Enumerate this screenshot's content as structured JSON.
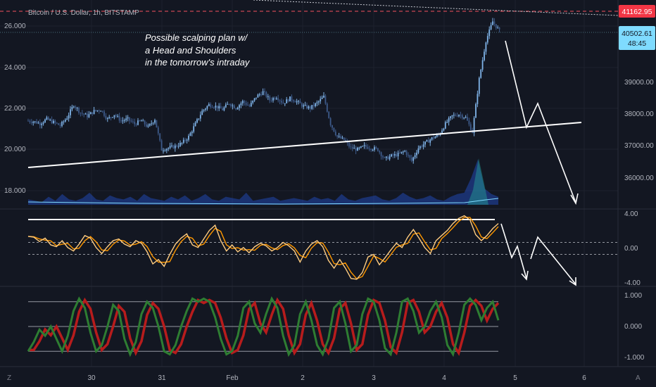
{
  "chart_data": [
    {
      "type": "candlestick",
      "title": "Bitcoin / U.S. Dollar, 1h, BITSTAMP",
      "x_ticks": [
        "30",
        "31",
        "Feb",
        "2",
        "3",
        "4",
        "5",
        "6"
      ],
      "left_axis": {
        "ticks": [
          "26.000",
          "24.000",
          "22.000",
          "20.000",
          "18.000"
        ]
      },
      "right_axis": {
        "ticks": [
          "39000.00",
          "38000.00",
          "37000.00",
          "36000.00"
        ],
        "ylim": [
          35300,
          41800
        ]
      },
      "price_badges": [
        {
          "value": "41162.95",
          "color": "#f23645"
        },
        {
          "value": "40502.61",
          "sub": "48:45",
          "color": "#7fdbff"
        }
      ],
      "annotation": [
        "Possible scalping plan w/",
        "a Head and Shoulders",
        "in the tomorrow's intraday"
      ],
      "close_path": [
        [
          0,
          37800
        ],
        [
          4,
          37780
        ],
        [
          8,
          37720
        ],
        [
          12,
          37850
        ],
        [
          16,
          37750
        ],
        [
          20,
          37650
        ],
        [
          24,
          37900
        ],
        [
          28,
          38300
        ],
        [
          32,
          38050
        ],
        [
          36,
          37950
        ],
        [
          40,
          38100
        ],
        [
          44,
          38150
        ],
        [
          48,
          37850
        ],
        [
          52,
          38000
        ],
        [
          56,
          37800
        ],
        [
          60,
          37850
        ],
        [
          64,
          37700
        ],
        [
          68,
          37800
        ],
        [
          72,
          37600
        ],
        [
          76,
          37850
        ],
        [
          80,
          36900
        ],
        [
          84,
          36950
        ],
        [
          88,
          37000
        ],
        [
          92,
          37100
        ],
        [
          96,
          37300
        ],
        [
          100,
          37700
        ],
        [
          104,
          38100
        ],
        [
          108,
          38300
        ],
        [
          112,
          38250
        ],
        [
          116,
          38150
        ],
        [
          120,
          38350
        ],
        [
          124,
          38200
        ],
        [
          128,
          38400
        ],
        [
          132,
          38250
        ],
        [
          136,
          38550
        ],
        [
          140,
          38700
        ],
        [
          144,
          38450
        ],
        [
          148,
          38550
        ],
        [
          152,
          38350
        ],
        [
          156,
          38500
        ],
        [
          160,
          38400
        ],
        [
          164,
          38250
        ],
        [
          168,
          38200
        ],
        [
          172,
          38350
        ],
        [
          176,
          38550
        ],
        [
          180,
          37700
        ],
        [
          184,
          37300
        ],
        [
          188,
          37200
        ],
        [
          192,
          36950
        ],
        [
          196,
          36900
        ],
        [
          200,
          37000
        ],
        [
          204,
          36950
        ],
        [
          208,
          36900
        ],
        [
          212,
          36600
        ],
        [
          216,
          36700
        ],
        [
          220,
          36750
        ],
        [
          224,
          36850
        ],
        [
          228,
          36550
        ],
        [
          232,
          36950
        ],
        [
          236,
          37100
        ],
        [
          240,
          37250
        ],
        [
          244,
          37350
        ],
        [
          248,
          37700
        ],
        [
          252,
          37950
        ],
        [
          256,
          38000
        ],
        [
          260,
          37900
        ],
        [
          264,
          37450
        ],
        [
          268,
          39100
        ],
        [
          272,
          40300
        ],
        [
          276,
          40900
        ],
        [
          280,
          40600
        ]
      ],
      "volume_profile": [
        4,
        3,
        2,
        6,
        3,
        8,
        4,
        3,
        5,
        9,
        4,
        3,
        7,
        5,
        4,
        6,
        3,
        8,
        5,
        4,
        3,
        6,
        4,
        7,
        3,
        5,
        8,
        4,
        3,
        6,
        5,
        4,
        9,
        3,
        4,
        5,
        6,
        3,
        4,
        5,
        4,
        3,
        6,
        4,
        5,
        3,
        8,
        4,
        3,
        5,
        6,
        7,
        4,
        3,
        5,
        9,
        6,
        4,
        5,
        7,
        4,
        3,
        6,
        8,
        9,
        20,
        34,
        12,
        8,
        6
      ],
      "trendline": "ascending support",
      "projection": "head-and-shoulders breakdown"
    },
    {
      "type": "line",
      "name": "oscillator",
      "y_ticks": [
        "4.00",
        "0.00",
        "-4.00"
      ],
      "ylim": [
        -4.4,
        4.4
      ],
      "levels": [
        0.7,
        -0.7
      ],
      "values": [
        1.4,
        1.3,
        0.8,
        1.2,
        0.4,
        0.2,
        0.9,
        0.1,
        -0.3,
        0.5,
        1.5,
        1.2,
        0.1,
        -0.6,
        0.2,
        0.9,
        1.1,
        0.5,
        0.2,
        0.9,
        0.6,
        -0.4,
        -1.8,
        -1.3,
        -2.1,
        -0.7,
        0.5,
        1.2,
        1.7,
        0.4,
        0.1,
        1.1,
        2.1,
        2.7,
        0.9,
        -0.3,
        0.4,
        -0.4,
        0.1,
        -0.5,
        0.2,
        0.6,
        0.3,
        -0.3,
        0.1,
        0.7,
        0.3,
        -0.3,
        -1.6,
        -0.3,
        0.5,
        0.9,
        0.2,
        -1.4,
        -2.3,
        -1.3,
        -2.3,
        -3.5,
        -3.6,
        -2.8,
        -1.0,
        -0.7,
        -1.9,
        -1.1,
        -0.2,
        0.6,
        0.1,
        1.3,
        2.2,
        1.2,
        0.1,
        -0.6,
        0.9,
        1.5,
        2.1,
        2.9,
        3.5,
        3.8,
        3.3,
        1.6,
        0.9,
        1.5,
        2.3,
        2.9
      ]
    },
    {
      "type": "line",
      "name": "stochastic",
      "y_ticks": [
        "1.000",
        "0.000",
        "-1.000"
      ],
      "ylim": [
        -1.15,
        1.15
      ],
      "levels": [
        0.8,
        0,
        -0.8
      ],
      "values": [
        -0.8,
        -0.5,
        -0.1,
        -0.3,
        0.0,
        -0.4,
        -0.8,
        -0.3,
        0.5,
        0.9,
        0.6,
        -0.2,
        -0.8,
        -0.6,
        0.0,
        0.7,
        0.5,
        -0.4,
        -0.9,
        -0.5,
        0.4,
        0.8,
        0.6,
        0.0,
        -0.8,
        -0.9,
        -0.6,
        0.0,
        0.5,
        0.9,
        0.8,
        0.9,
        0.8,
        0.3,
        -0.4,
        -0.9,
        -0.8,
        -0.3,
        0.6,
        0.8,
        0.1,
        -0.2,
        0.4,
        0.9,
        0.6,
        -0.3,
        -0.9,
        -0.6,
        0.4,
        0.8,
        0.2,
        -0.6,
        -0.9,
        -0.4,
        0.6,
        0.8,
        0.1,
        -0.8,
        -0.6,
        0.4,
        0.9,
        0.8,
        0.2,
        -0.7,
        -0.9,
        -0.2,
        0.8,
        0.9,
        0.5,
        -0.2,
        0.0,
        0.5,
        0.8,
        0.3,
        -0.6,
        -0.9,
        -0.2,
        0.7,
        0.9,
        0.7,
        0.2,
        0.6,
        0.8,
        0.2
      ]
    }
  ],
  "ui": {
    "left_corner": "Z",
    "right_corner": "A"
  }
}
